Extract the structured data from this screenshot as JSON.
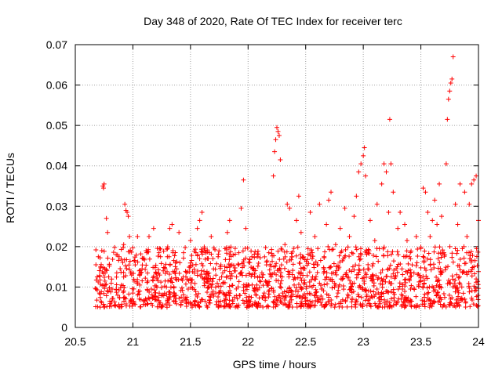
{
  "chart_data": {
    "type": "scatter",
    "title": "Day 348 of 2020, Rate Of TEC Index for receiver terc",
    "xlabel": "GPS time / hours",
    "ylabel": "ROTI / TECUs",
    "xlim": [
      20.5,
      24
    ],
    "ylim": [
      0,
      0.07
    ],
    "xticks": [
      20.5,
      21,
      21.5,
      22,
      22.5,
      23,
      23.5,
      24
    ],
    "xtick_labels": [
      "20.5",
      "21",
      "21.5",
      "22",
      "22.5",
      "23",
      "23.5",
      "24"
    ],
    "yticks": [
      0,
      0.01,
      0.02,
      0.03,
      0.04,
      0.05,
      0.06,
      0.07
    ],
    "ytick_labels": [
      "0",
      "0.01",
      "0.02",
      "0.03",
      "0.04",
      "0.05",
      "0.06",
      "0.07"
    ],
    "grid": true,
    "marker": "+",
    "color": "#ff0000",
    "series": [
      {
        "name": "ROTI",
        "points": [
          [
            20.68,
            0.0095
          ],
          [
            20.69,
            0.0125
          ],
          [
            20.7,
            0.0175
          ],
          [
            20.71,
            0.0085
          ],
          [
            20.72,
            0.015
          ],
          [
            20.73,
            0.019
          ],
          [
            20.74,
            0.035
          ],
          [
            20.745,
            0.0345
          ],
          [
            20.75,
            0.0355
          ],
          [
            20.76,
            0.0105
          ],
          [
            20.77,
            0.027
          ],
          [
            20.78,
            0.0235
          ],
          [
            20.79,
            0.0125
          ],
          [
            20.8,
            0.0065
          ],
          [
            20.82,
            0.0095
          ],
          [
            20.84,
            0.0055
          ],
          [
            20.86,
            0.0135
          ],
          [
            20.88,
            0.0175
          ],
          [
            20.9,
            0.0105
          ],
          [
            20.92,
            0.0205
          ],
          [
            20.93,
            0.0305
          ],
          [
            20.94,
            0.029
          ],
          [
            20.95,
            0.0285
          ],
          [
            20.96,
            0.0275
          ],
          [
            20.97,
            0.0225
          ],
          [
            20.98,
            0.0135
          ],
          [
            21.0,
            0.0085
          ],
          [
            21.02,
            0.0155
          ],
          [
            21.04,
            0.0225
          ],
          [
            21.06,
            0.0105
          ],
          [
            21.08,
            0.0145
          ],
          [
            21.1,
            0.0065
          ],
          [
            21.12,
            0.0185
          ],
          [
            21.14,
            0.0225
          ],
          [
            21.16,
            0.0095
          ],
          [
            21.18,
            0.0245
          ],
          [
            21.2,
            0.0135
          ],
          [
            21.22,
            0.0075
          ],
          [
            21.24,
            0.0175
          ],
          [
            21.26,
            0.0055
          ],
          [
            21.28,
            0.0115
          ],
          [
            21.3,
            0.0195
          ],
          [
            21.32,
            0.0245
          ],
          [
            21.34,
            0.0255
          ],
          [
            21.36,
            0.0085
          ],
          [
            21.38,
            0.0145
          ],
          [
            21.4,
            0.0235
          ],
          [
            21.42,
            0.0075
          ],
          [
            21.44,
            0.0185
          ],
          [
            21.46,
            0.0125
          ],
          [
            21.48,
            0.0095
          ],
          [
            21.5,
            0.0215
          ],
          [
            21.52,
            0.0155
          ],
          [
            21.54,
            0.0065
          ],
          [
            21.56,
            0.0245
          ],
          [
            21.58,
            0.0265
          ],
          [
            21.6,
            0.0285
          ],
          [
            21.62,
            0.0195
          ],
          [
            21.64,
            0.0055
          ],
          [
            21.66,
            0.0115
          ],
          [
            21.68,
            0.0225
          ],
          [
            21.7,
            0.0145
          ],
          [
            21.72,
            0.0085
          ],
          [
            21.74,
            0.0175
          ],
          [
            21.76,
            0.0065
          ],
          [
            21.78,
            0.0135
          ],
          [
            21.8,
            0.0195
          ],
          [
            21.82,
            0.0235
          ],
          [
            21.84,
            0.0265
          ],
          [
            21.86,
            0.0155
          ],
          [
            21.88,
            0.0075
          ],
          [
            21.9,
            0.0125
          ],
          [
            21.92,
            0.0185
          ],
          [
            21.94,
            0.0295
          ],
          [
            21.96,
            0.0365
          ],
          [
            21.98,
            0.0245
          ],
          [
            22.0,
            0.0105
          ],
          [
            22.02,
            0.0065
          ],
          [
            22.04,
            0.0145
          ],
          [
            22.06,
            0.0095
          ],
          [
            22.08,
            0.0175
          ],
          [
            22.1,
            0.0115
          ],
          [
            22.12,
            0.0135
          ],
          [
            22.14,
            0.0085
          ],
          [
            22.16,
            0.0155
          ],
          [
            22.18,
            0.0185
          ],
          [
            22.2,
            0.0125
          ],
          [
            22.22,
            0.0375
          ],
          [
            22.23,
            0.0435
          ],
          [
            22.24,
            0.0465
          ],
          [
            22.25,
            0.0495
          ],
          [
            22.26,
            0.0485
          ],
          [
            22.27,
            0.0475
          ],
          [
            22.28,
            0.0415
          ],
          [
            22.29,
            0.0155
          ],
          [
            22.3,
            0.0085
          ],
          [
            22.32,
            0.0205
          ],
          [
            22.34,
            0.0305
          ],
          [
            22.36,
            0.0295
          ],
          [
            22.38,
            0.0175
          ],
          [
            22.4,
            0.0105
          ],
          [
            22.42,
            0.0265
          ],
          [
            22.44,
            0.0325
          ],
          [
            22.46,
            0.0235
          ],
          [
            22.48,
            0.0145
          ],
          [
            22.5,
            0.0075
          ],
          [
            22.52,
            0.0195
          ],
          [
            22.54,
            0.0285
          ],
          [
            22.56,
            0.0125
          ],
          [
            22.58,
            0.0225
          ],
          [
            22.6,
            0.0155
          ],
          [
            22.62,
            0.0305
          ],
          [
            22.64,
            0.0095
          ],
          [
            22.66,
            0.0175
          ],
          [
            22.68,
            0.0255
          ],
          [
            22.7,
            0.0315
          ],
          [
            22.72,
            0.0335
          ],
          [
            22.74,
            0.0135
          ],
          [
            22.76,
            0.0205
          ],
          [
            22.78,
            0.0085
          ],
          [
            22.8,
            0.0245
          ],
          [
            22.82,
            0.0165
          ],
          [
            22.84,
            0.0295
          ],
          [
            22.86,
            0.0125
          ],
          [
            22.88,
            0.0225
          ],
          [
            22.9,
            0.0185
          ],
          [
            22.92,
            0.0275
          ],
          [
            22.94,
            0.0325
          ],
          [
            22.96,
            0.0385
          ],
          [
            22.98,
            0.0405
          ],
          [
            23.0,
            0.0425
          ],
          [
            23.01,
            0.0445
          ],
          [
            23.02,
            0.0375
          ],
          [
            23.04,
            0.0145
          ],
          [
            23.06,
            0.0265
          ],
          [
            23.08,
            0.0075
          ],
          [
            23.1,
            0.0215
          ],
          [
            23.12,
            0.0305
          ],
          [
            23.14,
            0.0195
          ],
          [
            23.16,
            0.0355
          ],
          [
            23.18,
            0.0405
          ],
          [
            23.2,
            0.0385
          ],
          [
            23.22,
            0.0285
          ],
          [
            23.23,
            0.0515
          ],
          [
            23.24,
            0.0405
          ],
          [
            23.26,
            0.0335
          ],
          [
            23.28,
            0.0125
          ],
          [
            23.3,
            0.0245
          ],
          [
            23.32,
            0.0285
          ],
          [
            23.34,
            0.0095
          ],
          [
            23.36,
            0.0255
          ],
          [
            23.38,
            0.0215
          ],
          [
            23.4,
            0.0175
          ],
          [
            23.42,
            0.0065
          ],
          [
            23.44,
            0.0135
          ],
          [
            23.46,
            0.0225
          ],
          [
            23.48,
            0.0105
          ],
          [
            23.5,
            0.0195
          ],
          [
            23.52,
            0.0345
          ],
          [
            23.54,
            0.0335
          ],
          [
            23.56,
            0.0285
          ],
          [
            23.58,
            0.0225
          ],
          [
            23.6,
            0.0265
          ],
          [
            23.62,
            0.0315
          ],
          [
            23.64,
            0.0255
          ],
          [
            23.66,
            0.0355
          ],
          [
            23.68,
            0.0275
          ],
          [
            23.7,
            0.0185
          ],
          [
            23.72,
            0.0405
          ],
          [
            23.73,
            0.0515
          ],
          [
            23.74,
            0.0565
          ],
          [
            23.75,
            0.0585
          ],
          [
            23.76,
            0.0605
          ],
          [
            23.77,
            0.0615
          ],
          [
            23.78,
            0.067
          ],
          [
            23.8,
            0.0305
          ],
          [
            23.82,
            0.0255
          ],
          [
            23.84,
            0.0355
          ],
          [
            23.86,
            0.0195
          ],
          [
            23.88,
            0.0335
          ],
          [
            23.9,
            0.0225
          ],
          [
            23.92,
            0.0305
          ],
          [
            23.94,
            0.0355
          ],
          [
            23.96,
            0.0365
          ],
          [
            23.98,
            0.0375
          ],
          [
            24.0,
            0.0265
          ]
        ],
        "dense_band": [
          20.67,
          24.0,
          0.005,
          0.02
        ]
      }
    ]
  }
}
